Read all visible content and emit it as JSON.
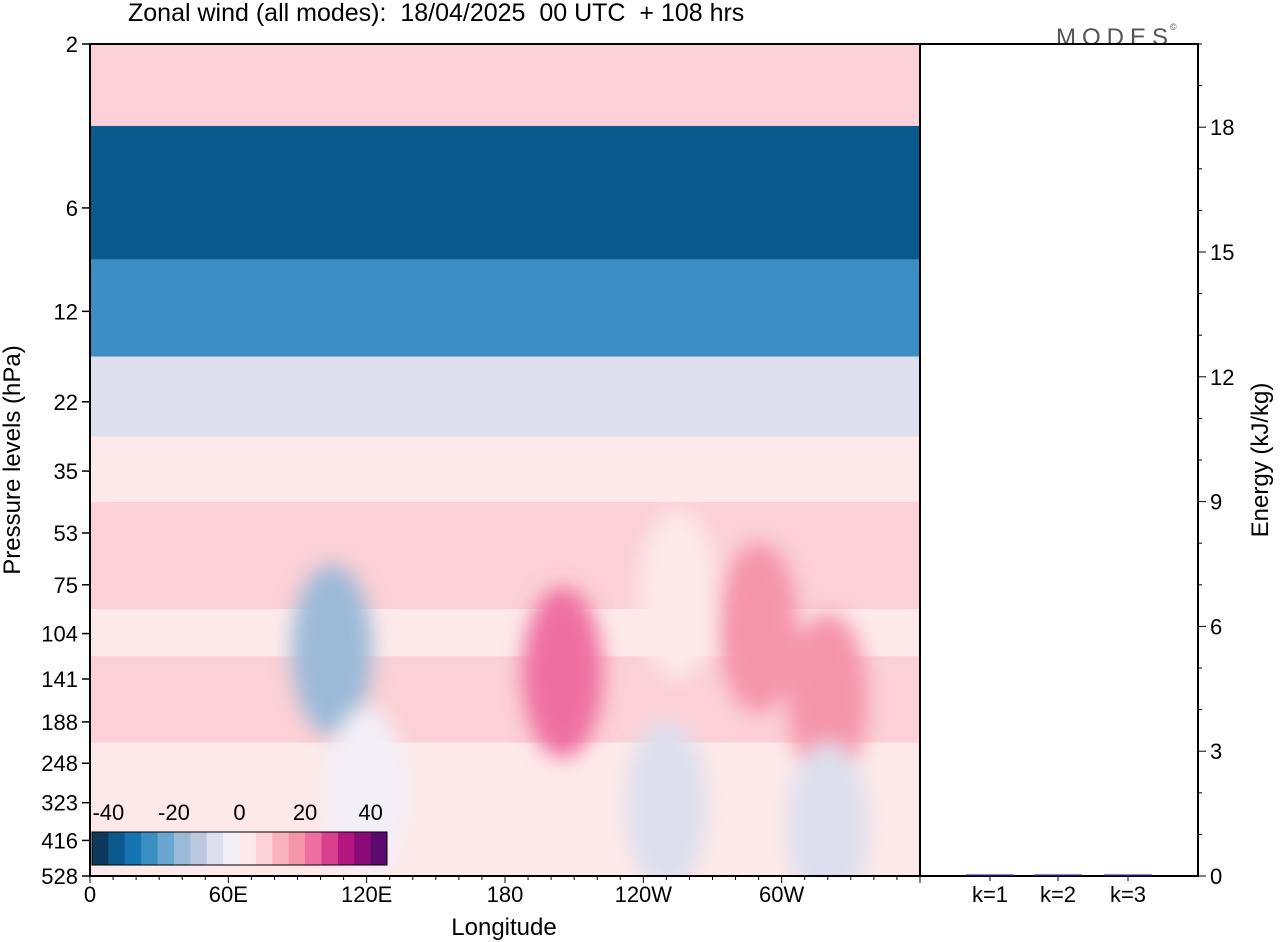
{
  "title": "Zonal wind (all modes):  18/04/2025  00 UTC  + 108 hrs",
  "logo_text": "MODES",
  "logo_mark": "©",
  "chart_data": [
    {
      "type": "heatmap",
      "title": "Zonal wind (all modes):  18/04/2025  00 UTC  + 108 hrs",
      "xlabel": "Longitude",
      "ylabel": "Pressure levels (hPa)",
      "x_ticks": [
        "0",
        "60E",
        "120E",
        "180",
        "120W",
        "60W"
      ],
      "y_ticks": [
        "2",
        "6",
        "12",
        "22",
        "35",
        "53",
        "75",
        "104",
        "141",
        "188",
        "248",
        "323",
        "416",
        "528"
      ],
      "colorbar": {
        "labels": [
          "-40",
          "-20",
          "0",
          "20",
          "40"
        ],
        "levels": [
          -45,
          -40,
          -35,
          -30,
          -25,
          -20,
          -15,
          -10,
          -5,
          0,
          5,
          10,
          15,
          20,
          25,
          30,
          35,
          40,
          45
        ],
        "colors": [
          "#0d3a5c",
          "#0a5a8e",
          "#1575b2",
          "#3b8ec2",
          "#69a6d0",
          "#9bbad8",
          "#bcc7e0",
          "#dddfee",
          "#f3eff7",
          "#fde9ea",
          "#fbd0d6",
          "#f8b3be",
          "#f595aa",
          "#ef6fa0",
          "#d9418f",
          "#b3177f",
          "#8a0a77",
          "#5a0a6e"
        ]
      },
      "profile": {
        "levels": [
          "2",
          "6",
          "12",
          "22",
          "35",
          "53",
          "75",
          "104",
          "141",
          "188",
          "248",
          "323",
          "416",
          "528"
        ],
        "values": [
          8,
          -40,
          -30,
          -10,
          3,
          6,
          5,
          4,
          6,
          5,
          3,
          1,
          1,
          0
        ]
      },
      "features": [
        {
          "lon": 105,
          "level": "116",
          "value": -18
        },
        {
          "lon": 205,
          "level": "135",
          "value": 22
        },
        {
          "lon": 320,
          "level": "160",
          "value": 15
        },
        {
          "lon": 290,
          "level": "100",
          "value": 15
        },
        {
          "lon": 255,
          "level": "80",
          "value": 2
        },
        {
          "lon": 250,
          "level": "330",
          "value": -6
        },
        {
          "lon": 320,
          "level": "380",
          "value": -6
        },
        {
          "lon": 120,
          "level": "300",
          "value": -5
        }
      ]
    },
    {
      "type": "bar",
      "categories": [
        "k=1",
        "k=2",
        "k=3"
      ],
      "values": [
        0.03,
        0.02,
        0.01
      ],
      "ylabel": "Energy (kJ/kg)",
      "y_ticks": [
        "0",
        "3",
        "6",
        "9",
        "12",
        "15",
        "18"
      ],
      "ylim": [
        0,
        20
      ]
    }
  ]
}
